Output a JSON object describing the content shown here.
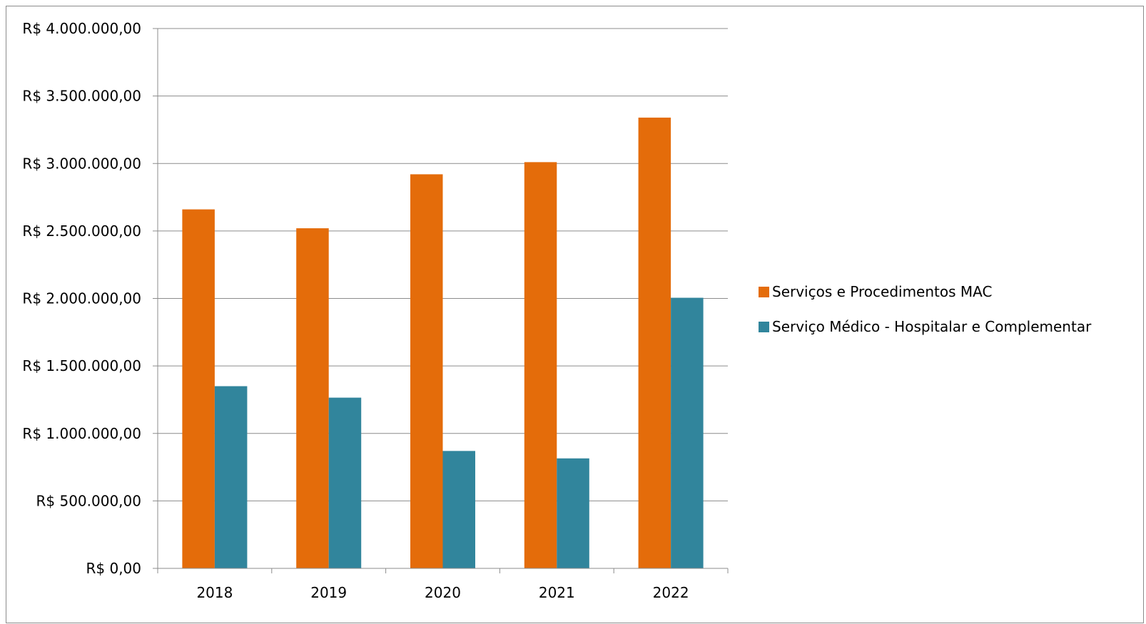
{
  "chart_data": {
    "type": "bar",
    "title": "",
    "xlabel": "",
    "ylabel": "",
    "categories": [
      "2018",
      "2019",
      "2020",
      "2021",
      "2022"
    ],
    "series": [
      {
        "name": "Serviços e Procedimentos MAC",
        "color": "#E46C0A",
        "values": [
          2660000,
          2520000,
          2920000,
          3010000,
          3340000
        ]
      },
      {
        "name": "Serviço Médico - Hospitalar e Complementar",
        "color": "#31859C",
        "values": [
          1350000,
          1265000,
          870000,
          815000,
          2005000
        ]
      }
    ],
    "ylim": [
      0,
      4000000
    ],
    "y_ticks": [
      0,
      500000,
      1000000,
      1500000,
      2000000,
      2500000,
      3000000,
      3500000,
      4000000
    ],
    "y_tick_labels": [
      "R$ 0,00",
      "R$ 500.000,00",
      "R$ 1.000.000,00",
      "R$ 1.500.000,00",
      "R$ 2.000.000,00",
      "R$ 2.500.000,00",
      "R$ 3.000.000,00",
      "R$ 3.500.000,00",
      "R$ 4.000.000,00"
    ],
    "grid": true,
    "legend_position": "right"
  }
}
